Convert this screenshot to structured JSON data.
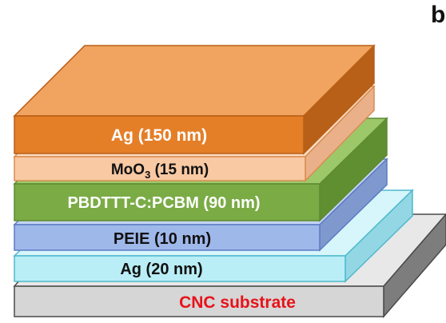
{
  "panel_letter": "b",
  "layers": {
    "substrate": {
      "label": "CNC substrate",
      "color": "#d6d6d6",
      "text_color": "#e8121a"
    },
    "ag_bottom": {
      "label": "Ag (20 nm)",
      "color": "#b9eef6",
      "text_color": "#111111"
    },
    "peie": {
      "label": "PEIE (10 nm)",
      "color": "#9fb8ea",
      "text_color": "#111111"
    },
    "active": {
      "label": "PBDTTT-C:PCBM (90 nm)",
      "color": "#7aab45",
      "text_color": "#ffffff"
    },
    "moo3": {
      "label_prefix": "MoO",
      "label_sub": "3",
      "label_suffix": " (15 nm)",
      "color": "#f8c9a3",
      "text_color": "#111111"
    },
    "ag_top": {
      "label": "Ag (150 nm)",
      "color": "#e47f28",
      "text_color": "#ffffff"
    }
  }
}
